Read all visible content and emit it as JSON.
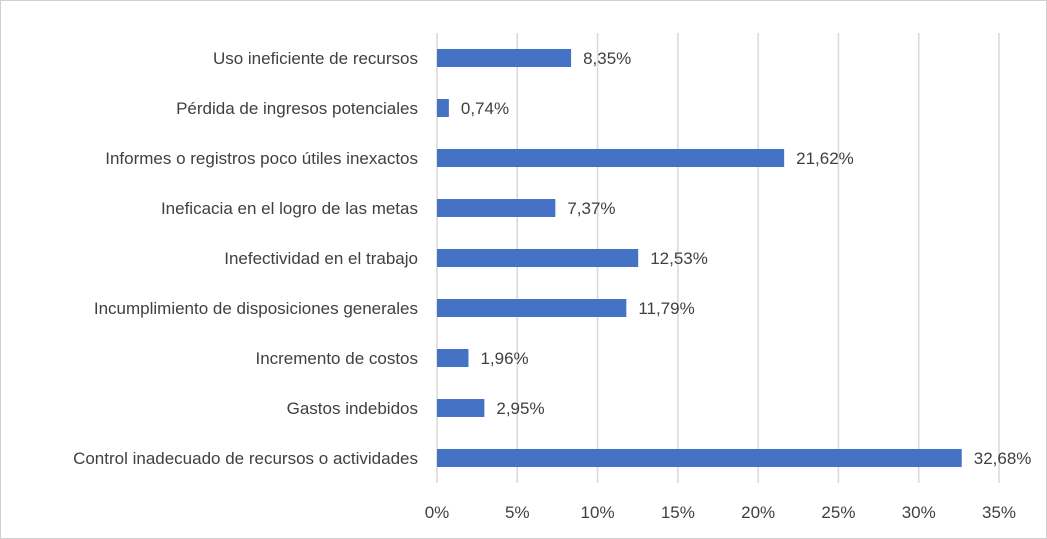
{
  "chart_data": {
    "type": "bar",
    "orientation": "horizontal",
    "categories": [
      "Uso ineficiente de recursos",
      "Pérdida de ingresos potenciales",
      "Informes o registros poco útiles inexactos",
      "Ineficacia en el logro de las metas",
      "Inefectividad en el trabajo",
      "Incumplimiento de disposiciones generales",
      "Incremento de costos",
      "Gastos indebidos",
      "Control inadecuado de recursos o actividades"
    ],
    "values": [
      8.35,
      0.74,
      21.62,
      7.37,
      12.53,
      11.79,
      1.96,
      2.95,
      32.68
    ],
    "data_labels": [
      "8,35%",
      "0,74%",
      "21,62%",
      "7,37%",
      "12,53%",
      "11,79%",
      "1,96%",
      "2,95%",
      "32,68%"
    ],
    "xlim": [
      0,
      35
    ],
    "x_ticks": [
      0,
      5,
      10,
      15,
      20,
      25,
      30,
      35
    ],
    "x_tick_labels": [
      "0%",
      "5%",
      "10%",
      "15%",
      "20%",
      "25%",
      "30%",
      "35%"
    ],
    "title": "",
    "xlabel": "",
    "ylabel": "",
    "grid": "vertical",
    "legend": "none",
    "colors": {
      "bar": "#4472C4",
      "grid": "#d9d9d9",
      "text": "#404040"
    }
  }
}
